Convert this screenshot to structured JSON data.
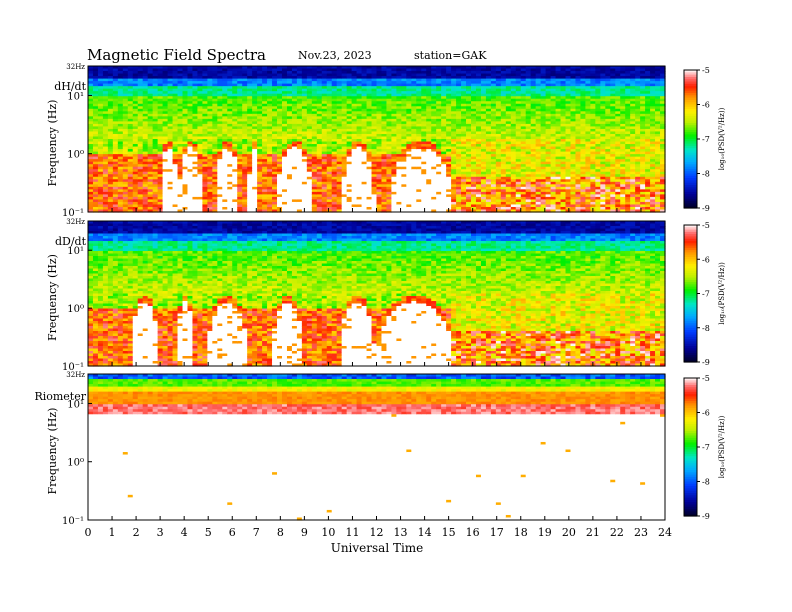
{
  "header": {
    "title": "Magnetic Field Spectra",
    "date": "Nov.23, 2023",
    "station": "station=GAK"
  },
  "colorbar": {
    "label": "log₁₀(PSD(V²/Hz))",
    "ticks": [
      "-5",
      "-6",
      "-7",
      "-8",
      "-9"
    ],
    "values": [
      -5,
      -6,
      -7,
      -8,
      -9
    ]
  },
  "chart_data": [
    {
      "type": "heatmap",
      "panel_label": "dH/dt",
      "top_label": "32Hz",
      "ylabel": "Frequency (Hz)",
      "y_tick_labels": [
        "10¹",
        "10⁰",
        "10⁻¹"
      ],
      "y_range_hz": [
        0.1,
        32
      ],
      "y_scale": "log",
      "x_range_ut": [
        0,
        24
      ],
      "zlim": [
        -9,
        -5
      ],
      "quiet_gaps_ut": [
        [
          3.0,
          3.7
        ],
        [
          3.8,
          4.7
        ],
        [
          5.3,
          6.3
        ],
        [
          6.7,
          7.1
        ],
        [
          7.9,
          9.3
        ],
        [
          10.6,
          11.9
        ],
        [
          12.6,
          15.1
        ]
      ]
    },
    {
      "type": "heatmap",
      "panel_label": "dD/dt",
      "top_label": "32Hz",
      "ylabel": "Frequency (Hz)",
      "y_tick_labels": [
        "10¹",
        "10⁰",
        "10⁻¹"
      ],
      "y_range_hz": [
        0.1,
        32
      ],
      "y_scale": "log",
      "x_range_ut": [
        0,
        24
      ],
      "zlim": [
        -9,
        -5
      ],
      "quiet_gaps_ut": [
        [
          1.8,
          2.9
        ],
        [
          3.7,
          4.4
        ],
        [
          5.0,
          6.6
        ],
        [
          7.7,
          8.9
        ],
        [
          10.5,
          11.9
        ],
        [
          12.1,
          15.1
        ]
      ]
    },
    {
      "type": "heatmap",
      "panel_label": "Riometer",
      "top_label": "32Hz",
      "ylabel": "Frequency (Hz)",
      "y_tick_labels": [
        "10¹",
        "10⁰",
        "10⁻¹"
      ],
      "y_range_hz": [
        0.1,
        32
      ],
      "y_scale": "log",
      "x_range_ut": [
        0,
        24
      ],
      "zlim": [
        -9,
        -5
      ]
    }
  ],
  "xaxis": {
    "label": "Universal Time",
    "ticks": [
      "0",
      "1",
      "2",
      "3",
      "4",
      "5",
      "6",
      "7",
      "8",
      "9",
      "10",
      "11",
      "12",
      "13",
      "14",
      "15",
      "16",
      "17",
      "18",
      "19",
      "20",
      "21",
      "22",
      "23",
      "24"
    ]
  }
}
